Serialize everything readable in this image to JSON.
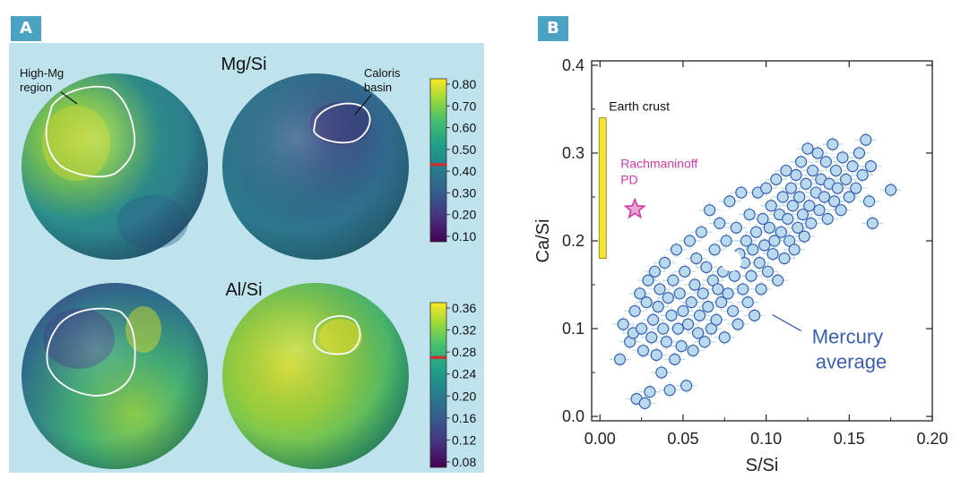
{
  "panels": {
    "a_label": "A",
    "b_label": "B"
  },
  "maps": {
    "mgsi": {
      "title": "Mg/Si",
      "ticks": [
        "0.80",
        "0.70",
        "0.60",
        "0.50",
        "0.40",
        "0.30",
        "0.20",
        "0.10"
      ],
      "marker_value": 0.43,
      "annotations": {
        "high_mg_line1": "High-Mg",
        "high_mg_line2": "region",
        "caloris_line1": "Caloris",
        "caloris_line2": "basin"
      }
    },
    "alsi": {
      "title": "Al/Si",
      "ticks": [
        "0.36",
        "0.32",
        "0.28",
        "0.24",
        "0.20",
        "0.16",
        "0.12",
        "0.08"
      ],
      "marker_value": 0.27
    },
    "colors": {
      "panel_bg": "#bfe3ec",
      "viridis_top": "#fde725",
      "viridis_mid": "#21918c",
      "viridis_bottom": "#440154",
      "outline": "#ffffff",
      "marker": "#d62728"
    }
  },
  "chart_data": {
    "type": "scatter",
    "xlabel": "S/Si",
    "ylabel": "Ca/Si",
    "xlim": [
      -0.005,
      0.2
    ],
    "ylim": [
      -0.005,
      0.405
    ],
    "xticks": [
      "0.00",
      "0.05",
      "0.10",
      "0.15",
      "0.20"
    ],
    "xtick_values": [
      0,
      0.05,
      0.1,
      0.15,
      0.2
    ],
    "yticks": [
      "0.0",
      "0.1",
      "0.2",
      "0.3",
      "0.4"
    ],
    "ytick_values": [
      0,
      0.1,
      0.2,
      0.3,
      0.4
    ],
    "point_color": "#b8d9ee",
    "point_edge": "#3a5fb0",
    "errorbar_color": "#b6dde8",
    "mercury_average": {
      "x": 0.079,
      "y": 0.177,
      "label_line1": "Mercury",
      "label_line2": "average"
    },
    "rachmaninoff": {
      "x": 0.021,
      "y": 0.236,
      "label_line1": "Rachmaninoff",
      "label_line2": "PD",
      "color": "#d63aa8"
    },
    "earth_crust": {
      "x": 0.0,
      "y_range": [
        0.18,
        0.34
      ],
      "label": "Earth crust",
      "color": "#f2e43c"
    },
    "points": [
      [
        0.012,
        0.065
      ],
      [
        0.014,
        0.105
      ],
      [
        0.018,
        0.085
      ],
      [
        0.02,
        0.095
      ],
      [
        0.021,
        0.12
      ],
      [
        0.022,
        0.02
      ],
      [
        0.024,
        0.14
      ],
      [
        0.025,
        0.1
      ],
      [
        0.026,
        0.075
      ],
      [
        0.027,
        0.015
      ],
      [
        0.028,
        0.13
      ],
      [
        0.029,
        0.155
      ],
      [
        0.03,
        0.028
      ],
      [
        0.031,
        0.09
      ],
      [
        0.032,
        0.11
      ],
      [
        0.033,
        0.165
      ],
      [
        0.034,
        0.07
      ],
      [
        0.035,
        0.125
      ],
      [
        0.036,
        0.145
      ],
      [
        0.037,
        0.05
      ],
      [
        0.038,
        0.1
      ],
      [
        0.039,
        0.175
      ],
      [
        0.04,
        0.085
      ],
      [
        0.041,
        0.135
      ],
      [
        0.042,
        0.03
      ],
      [
        0.043,
        0.115
      ],
      [
        0.044,
        0.155
      ],
      [
        0.045,
        0.065
      ],
      [
        0.046,
        0.19
      ],
      [
        0.047,
        0.1
      ],
      [
        0.048,
        0.14
      ],
      [
        0.049,
        0.08
      ],
      [
        0.05,
        0.12
      ],
      [
        0.051,
        0.165
      ],
      [
        0.052,
        0.035
      ],
      [
        0.053,
        0.105
      ],
      [
        0.054,
        0.2
      ],
      [
        0.055,
        0.13
      ],
      [
        0.056,
        0.075
      ],
      [
        0.057,
        0.15
      ],
      [
        0.058,
        0.18
      ],
      [
        0.059,
        0.095
      ],
      [
        0.06,
        0.115
      ],
      [
        0.061,
        0.21
      ],
      [
        0.062,
        0.14
      ],
      [
        0.063,
        0.085
      ],
      [
        0.064,
        0.17
      ],
      [
        0.065,
        0.125
      ],
      [
        0.066,
        0.235
      ],
      [
        0.067,
        0.1
      ],
      [
        0.068,
        0.155
      ],
      [
        0.069,
        0.19
      ],
      [
        0.07,
        0.11
      ],
      [
        0.071,
        0.145
      ],
      [
        0.072,
        0.22
      ],
      [
        0.073,
        0.13
      ],
      [
        0.074,
        0.165
      ],
      [
        0.075,
        0.09
      ],
      [
        0.076,
        0.2
      ],
      [
        0.077,
        0.14
      ],
      [
        0.078,
        0.245
      ],
      [
        0.08,
        0.12
      ],
      [
        0.081,
        0.16
      ],
      [
        0.082,
        0.215
      ],
      [
        0.083,
        0.105
      ],
      [
        0.084,
        0.185
      ],
      [
        0.085,
        0.255
      ],
      [
        0.086,
        0.145
      ],
      [
        0.087,
        0.175
      ],
      [
        0.088,
        0.2
      ],
      [
        0.089,
        0.13
      ],
      [
        0.09,
        0.23
      ],
      [
        0.091,
        0.16
      ],
      [
        0.092,
        0.19
      ],
      [
        0.093,
        0.115
      ],
      [
        0.094,
        0.21
      ],
      [
        0.095,
        0.255
      ],
      [
        0.096,
        0.175
      ],
      [
        0.097,
        0.145
      ],
      [
        0.098,
        0.225
      ],
      [
        0.099,
        0.195
      ],
      [
        0.1,
        0.26
      ],
      [
        0.101,
        0.165
      ],
      [
        0.102,
        0.215
      ],
      [
        0.103,
        0.24
      ],
      [
        0.104,
        0.185
      ],
      [
        0.105,
        0.2
      ],
      [
        0.106,
        0.27
      ],
      [
        0.107,
        0.155
      ],
      [
        0.108,
        0.23
      ],
      [
        0.109,
        0.21
      ],
      [
        0.11,
        0.25
      ],
      [
        0.111,
        0.18
      ],
      [
        0.112,
        0.28
      ],
      [
        0.113,
        0.225
      ],
      [
        0.114,
        0.2
      ],
      [
        0.115,
        0.26
      ],
      [
        0.116,
        0.24
      ],
      [
        0.117,
        0.19
      ],
      [
        0.118,
        0.275
      ],
      [
        0.119,
        0.215
      ],
      [
        0.12,
        0.25
      ],
      [
        0.121,
        0.29
      ],
      [
        0.122,
        0.23
      ],
      [
        0.123,
        0.205
      ],
      [
        0.124,
        0.265
      ],
      [
        0.125,
        0.305
      ],
      [
        0.126,
        0.24
      ],
      [
        0.127,
        0.22
      ],
      [
        0.128,
        0.28
      ],
      [
        0.13,
        0.255
      ],
      [
        0.131,
        0.3
      ],
      [
        0.132,
        0.235
      ],
      [
        0.133,
        0.27
      ],
      [
        0.135,
        0.25
      ],
      [
        0.136,
        0.29
      ],
      [
        0.137,
        0.225
      ],
      [
        0.138,
        0.265
      ],
      [
        0.14,
        0.31
      ],
      [
        0.141,
        0.245
      ],
      [
        0.142,
        0.28
      ],
      [
        0.143,
        0.26
      ],
      [
        0.145,
        0.235
      ],
      [
        0.146,
        0.295
      ],
      [
        0.148,
        0.27
      ],
      [
        0.15,
        0.25
      ],
      [
        0.152,
        0.285
      ],
      [
        0.154,
        0.26
      ],
      [
        0.156,
        0.3
      ],
      [
        0.158,
        0.275
      ],
      [
        0.16,
        0.315
      ],
      [
        0.162,
        0.245
      ],
      [
        0.163,
        0.285
      ],
      [
        0.164,
        0.22
      ],
      [
        0.175,
        0.258
      ]
    ]
  }
}
